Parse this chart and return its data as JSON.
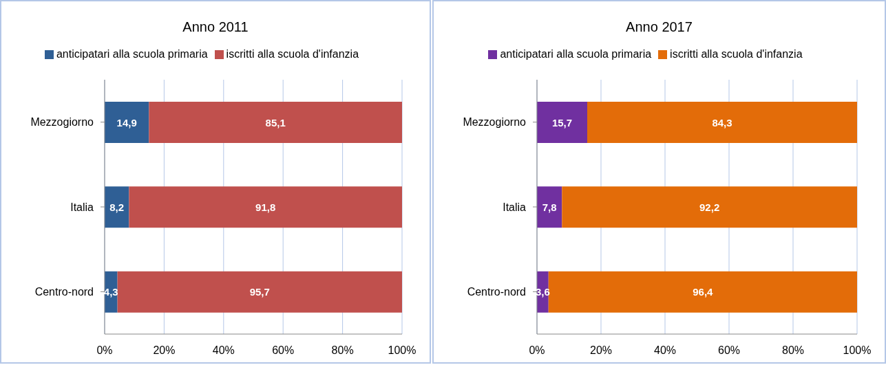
{
  "chart_data": [
    {
      "type": "bar",
      "orientation": "horizontal",
      "stacked": true,
      "title": "Anno 2011",
      "categories": [
        "Mezzogiorno",
        "Italia",
        "Centro-nord"
      ],
      "series": [
        {
          "name": "anticipatari alla scuola primaria",
          "color": "#2f5f95",
          "values": [
            14.9,
            8.2,
            4.3
          ],
          "value_labels": [
            "14,9",
            "8,2",
            "4,3"
          ]
        },
        {
          "name": "iscritti alla scuola d'infanzia",
          "color": "#c0504d",
          "values": [
            85.1,
            91.8,
            95.7
          ],
          "value_labels": [
            "85,1",
            "91,8",
            "95,7"
          ]
        }
      ],
      "xlim": [
        0,
        100
      ],
      "xticks": [
        {
          "value": 0,
          "label": "0%"
        },
        {
          "value": 20,
          "label": "20%"
        },
        {
          "value": 40,
          "label": "40%"
        },
        {
          "value": 60,
          "label": "60%"
        },
        {
          "value": 80,
          "label": "80%"
        },
        {
          "value": 100,
          "label": "100%"
        }
      ],
      "grid": "x",
      "legend": "top"
    },
    {
      "type": "bar",
      "orientation": "horizontal",
      "stacked": true,
      "title": "Anno 2017",
      "categories": [
        "Mezzogiorno",
        "Italia",
        "Centro-nord"
      ],
      "series": [
        {
          "name": "anticipatari alla scuola primaria",
          "color": "#7030a0",
          "values": [
            15.7,
            7.8,
            3.6
          ],
          "value_labels": [
            "15,7",
            "7,8",
            "3,6"
          ]
        },
        {
          "name": "iscritti alla scuola d'infanzia",
          "color": "#e36c09",
          "values": [
            84.3,
            92.2,
            96.4
          ],
          "value_labels": [
            "84,3",
            "92,2",
            "96,4"
          ]
        }
      ],
      "xlim": [
        0,
        100
      ],
      "xticks": [
        {
          "value": 0,
          "label": "0%"
        },
        {
          "value": 20,
          "label": "20%"
        },
        {
          "value": 40,
          "label": "40%"
        },
        {
          "value": 60,
          "label": "60%"
        },
        {
          "value": 80,
          "label": "80%"
        },
        {
          "value": 100,
          "label": "100%"
        }
      ],
      "grid": "x",
      "legend": "top"
    }
  ]
}
